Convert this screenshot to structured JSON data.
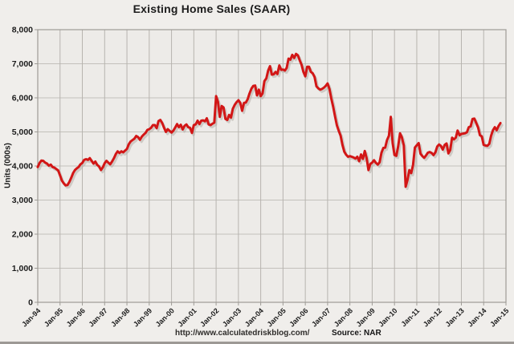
{
  "title": "Existing Home Sales (SAAR)",
  "y_axis": {
    "title": "Units (000s)",
    "min": 0,
    "max": 8000,
    "step": 1000,
    "tick_labels": [
      "0",
      "1,000",
      "2,000",
      "3,000",
      "4,000",
      "5,000",
      "6,000",
      "7,000",
      "8,000"
    ]
  },
  "x_axis": {
    "tick_labels": [
      "Jan-94",
      "Jan-95",
      "Jan-96",
      "Jan-97",
      "Jan-98",
      "Jan-99",
      "Jan-00",
      "Jan-01",
      "Jan-02",
      "Jan-03",
      "Jan-04",
      "Jan-05",
      "Jan-06",
      "Jan-07",
      "Jan-08",
      "Jan-09",
      "Jan-10",
      "Jan-11",
      "Jan-12",
      "Jan-13",
      "Jan-14",
      "Jan-15"
    ]
  },
  "footer": {
    "url": "http://www.calculatedriskblog.com/",
    "source": "Source: NAR"
  },
  "colors": {
    "line": "#d21616",
    "line_shadow": "#b4afa8",
    "plot_bg": "#edebe8",
    "page_bg": "#f0eeeb",
    "grid_h": "#c3c0bb",
    "grid_v": "#b7b4af",
    "border": "#9e9b96",
    "text": "#1c1c1c"
  },
  "chart_data": {
    "type": "line",
    "title": "Existing Home Sales (SAAR)",
    "xlabel": "",
    "ylabel": "Units (000s)",
    "ylim": [
      0,
      8000
    ],
    "x_range_years": [
      "Jan-94",
      "Jan-15"
    ],
    "frequency": "monthly",
    "x_start": "Jan-1994",
    "x_end": "Oct-2014",
    "grid": true,
    "legend": false,
    "series": [
      {
        "name": "Existing Home Sales (SAAR), thousands of units",
        "color": "#d21616",
        "values": [
          3970,
          4090,
          4160,
          4150,
          4100,
          4070,
          4010,
          4040,
          3970,
          3950,
          3910,
          3870,
          3720,
          3570,
          3490,
          3430,
          3440,
          3530,
          3650,
          3790,
          3880,
          3930,
          3970,
          4050,
          4090,
          4180,
          4200,
          4180,
          4230,
          4150,
          4070,
          4130,
          4030,
          3990,
          3880,
          3960,
          4080,
          4150,
          4100,
          4050,
          4130,
          4230,
          4350,
          4430,
          4380,
          4430,
          4400,
          4450,
          4500,
          4640,
          4720,
          4760,
          4800,
          4880,
          4850,
          4770,
          4860,
          4920,
          4970,
          5060,
          5080,
          5120,
          5200,
          5200,
          5110,
          5320,
          5350,
          5260,
          5120,
          5000,
          5080,
          5030,
          4980,
          5040,
          5130,
          5230,
          5140,
          5210,
          5070,
          5180,
          5220,
          5140,
          5120,
          4970,
          5200,
          5220,
          5330,
          5230,
          5330,
          5340,
          5310,
          5400,
          5220,
          5200,
          5240,
          5270,
          6050,
          5880,
          5440,
          5760,
          5720,
          5380,
          5350,
          5500,
          5420,
          5680,
          5790,
          5870,
          5930,
          5850,
          5620,
          5850,
          5860,
          5960,
          6130,
          6270,
          6350,
          6360,
          6070,
          6240,
          6050,
          6130,
          6490,
          6570,
          6800,
          6930,
          6680,
          6690,
          6760,
          6700,
          6950,
          6820,
          6830,
          6800,
          6880,
          7150,
          7120,
          7260,
          7170,
          7290,
          7250,
          7100,
          6970,
          6760,
          6630,
          6910,
          6910,
          6760,
          6720,
          6610,
          6340,
          6280,
          6240,
          6260,
          6300,
          6350,
          6420,
          6260,
          5980,
          5740,
          5450,
          5190,
          5030,
          4890,
          4620,
          4420,
          4330,
          4270,
          4290,
          4270,
          4250,
          4220,
          4270,
          4140,
          4340,
          4210,
          4440,
          4230,
          3880,
          4060,
          4100,
          4170,
          4090,
          4040,
          4110,
          4390,
          4530,
          4540,
          4760,
          4890,
          5440,
          4670,
          4320,
          4300,
          4580,
          4960,
          4840,
          4600,
          3390,
          3590,
          3880,
          3790,
          4030,
          4540,
          4610,
          4670,
          4360,
          4290,
          4240,
          4310,
          4390,
          4410,
          4380,
          4320,
          4400,
          4570,
          4630,
          4590,
          4480,
          4620,
          4660,
          4370,
          4470,
          4830,
          4780,
          4830,
          5040,
          4900,
          4940,
          4950,
          4960,
          4990,
          5140,
          5160,
          5380,
          5390,
          5260,
          5130,
          4900,
          4870,
          4620,
          4600,
          4590,
          4650,
          4890,
          5050,
          5140,
          5050,
          5170,
          5260
        ]
      }
    ]
  }
}
